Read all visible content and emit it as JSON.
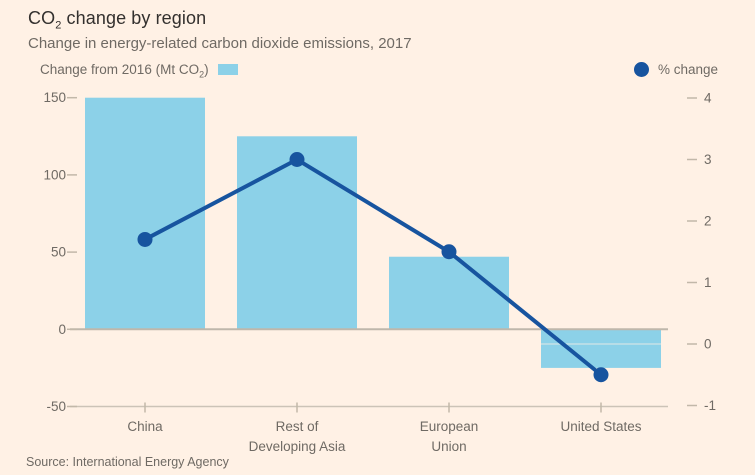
{
  "title": {
    "main_prefix": "CO",
    "subscript": "2",
    "main_suffix": " change by region"
  },
  "subtitle": "Change in energy-related carbon dioxide emissions, 2017",
  "legend": {
    "bars": {
      "label_prefix": "Change from 2016 (Mt CO",
      "label_subscript": "2",
      "label_suffix": ")"
    },
    "line": {
      "label": "% change"
    }
  },
  "source": "Source: International Energy Agency",
  "colors": {
    "background": "#FFF1E5",
    "bar_fill": "#8CD1E8",
    "line_color": "#17549F",
    "title_color": "#33302E",
    "muted_text": "#6F6A64",
    "zero_line": "#BFB7AB",
    "axis_line": "#CCC3B7",
    "tick_dash": "#C2B8A9"
  },
  "chart_data": {
    "type": "combo",
    "title": "CO2 change by region",
    "subtitle": "Change in energy-related carbon dioxide emissions, 2017",
    "categories": [
      "China",
      "Rest of Developing Asia",
      "European Union",
      "United States"
    ],
    "category_lines": [
      [
        "China"
      ],
      [
        "Rest of",
        "Developing Asia"
      ],
      [
        "European",
        "Union"
      ],
      [
        "United States"
      ]
    ],
    "series": [
      {
        "name": "Change from 2016 (Mt CO2)",
        "type": "bar",
        "axis": "left",
        "values": [
          150,
          125,
          47,
          -25
        ]
      },
      {
        "name": "% change",
        "type": "line",
        "axis": "right",
        "values": [
          1.7,
          3.0,
          1.5,
          -0.5
        ]
      }
    ],
    "left_axis": {
      "label": "Change from 2016 (Mt CO2)",
      "ticks": [
        150,
        100,
        50,
        0,
        -50
      ],
      "range": [
        -50,
        150
      ]
    },
    "right_axis": {
      "label": "% change",
      "ticks": [
        4,
        3,
        2,
        1,
        0,
        -1
      ],
      "range": [
        -1,
        4
      ]
    },
    "grid": "off",
    "legend_position": "top"
  }
}
